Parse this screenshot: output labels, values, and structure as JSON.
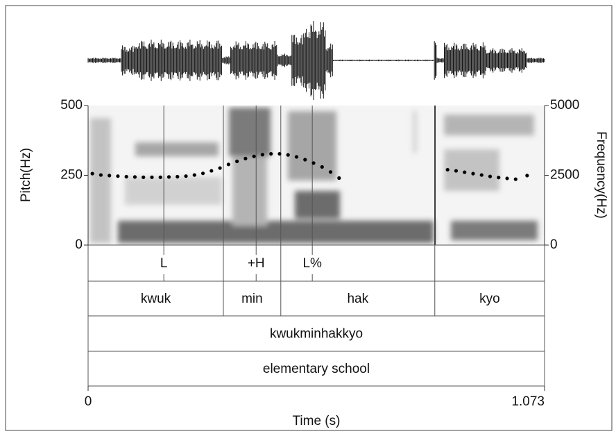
{
  "chart_data": {
    "type": "scatter",
    "x_label": "Time (s)",
    "y_label": "Pitch(Hz)",
    "y2_label": "Frequency(Hz)",
    "xlim": [
      0,
      1.073
    ],
    "xticks": [
      0,
      1.073
    ],
    "ylim": [
      0,
      500
    ],
    "yticks": [
      0,
      250,
      500
    ],
    "y2lim": [
      0,
      5000
    ],
    "y2ticks": [
      0,
      2500,
      5000
    ],
    "color": "#000000",
    "x": [
      0.01,
      0.03,
      0.05,
      0.07,
      0.09,
      0.11,
      0.13,
      0.15,
      0.17,
      0.19,
      0.21,
      0.23,
      0.25,
      0.27,
      0.29,
      0.31,
      0.33,
      0.35,
      0.37,
      0.39,
      0.41,
      0.43,
      0.45,
      0.47,
      0.49,
      0.51,
      0.53,
      0.55,
      0.57,
      0.59,
      0.845,
      0.865,
      0.885,
      0.905,
      0.925,
      0.945,
      0.965,
      0.985,
      1.005,
      1.032
    ],
    "values": [
      256,
      251,
      249,
      247,
      245,
      244,
      243,
      243,
      243,
      244,
      245,
      247,
      251,
      257,
      266,
      276,
      289,
      300,
      310,
      318,
      324,
      327,
      327,
      323,
      316,
      306,
      294,
      280,
      262,
      240,
      270,
      266,
      261,
      256,
      251,
      246,
      242,
      239,
      236,
      249
    ],
    "tiers": [
      {
        "points": [
          {
            "time": 0.178,
            "label": "L"
          },
          {
            "time": 0.395,
            "label": "+H"
          },
          {
            "time": 0.527,
            "label": "L%"
          }
        ]
      },
      {
        "boundaries": [
          0.318,
          0.453,
          0.815
        ],
        "labels": [
          "kwuk",
          "min",
          "hak",
          "kyo"
        ]
      },
      {
        "labels": [
          "kwukminhakkyo"
        ]
      },
      {
        "labels": [
          "elementary school"
        ]
      }
    ]
  }
}
